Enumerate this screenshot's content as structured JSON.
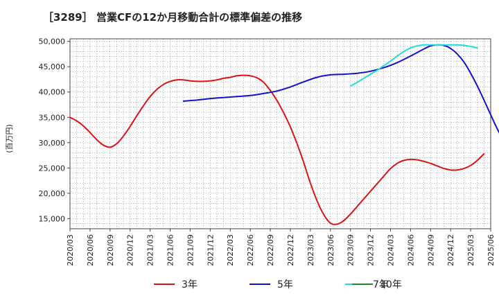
{
  "chart_data": {
    "type": "line",
    "title": "［3289］ 営業CFの12か月移動合計の標準偏差の推移",
    "ylabel": "(百万円)",
    "ylim": [
      13000,
      50500
    ],
    "yticks": [
      15000,
      20000,
      25000,
      30000,
      35000,
      40000,
      45000,
      50000
    ],
    "ytick_labels": [
      "15,000",
      "20,000",
      "25,000",
      "30,000",
      "35,000",
      "40,000",
      "45,000",
      "50,000"
    ],
    "xlim": [
      "2020/03",
      "2025/06"
    ],
    "xtick_labels": [
      "2020/03",
      "2020/06",
      "2020/09",
      "2020/12",
      "2021/03",
      "2021/06",
      "2021/09",
      "2021/12",
      "2022/03",
      "2022/06",
      "2022/09",
      "2022/12",
      "2023/03",
      "2023/06",
      "2023/09",
      "2023/12",
      "2024/03",
      "2024/06",
      "2024/09",
      "2024/12",
      "2025/03",
      "2025/06"
    ],
    "grid": true,
    "legend_position": "bottom",
    "series": [
      {
        "name": "3年",
        "color": "#dd1111",
        "points": [
          [
            "2020/03",
            35000
          ],
          [
            "2020/04",
            34300
          ],
          [
            "2020/05",
            33300
          ],
          [
            "2020/06",
            32000
          ],
          [
            "2020/07",
            30600
          ],
          [
            "2020/08",
            29500
          ],
          [
            "2020/09",
            29100
          ],
          [
            "2020/10",
            29800
          ],
          [
            "2020/11",
            31300
          ],
          [
            "2020/12",
            33200
          ],
          [
            "2021/01",
            35300
          ],
          [
            "2021/02",
            37300
          ],
          [
            "2021/03",
            39100
          ],
          [
            "2021/04",
            40500
          ],
          [
            "2021/05",
            41500
          ],
          [
            "2021/06",
            42100
          ],
          [
            "2021/07",
            42400
          ],
          [
            "2021/08",
            42400
          ],
          [
            "2021/09",
            42200
          ],
          [
            "2021/10",
            42100
          ],
          [
            "2021/11",
            42100
          ],
          [
            "2021/12",
            42200
          ],
          [
            "2021/13",
            42400
          ],
          [
            "2022/02",
            42700
          ],
          [
            "2022/03",
            42900
          ],
          [
            "2022/04",
            43200
          ],
          [
            "2022/05",
            43300
          ],
          [
            "2022/06",
            43200
          ],
          [
            "2022/07",
            42800
          ],
          [
            "2022/08",
            41900
          ],
          [
            "2022/09",
            40300
          ],
          [
            "2022/10",
            38300
          ],
          [
            "2022/11",
            35900
          ],
          [
            "2022/12",
            33100
          ],
          [
            "2023/01",
            29800
          ],
          [
            "2023/02",
            26100
          ],
          [
            "2023/03",
            22000
          ],
          [
            "2023/04",
            18500
          ],
          [
            "2023/05",
            15800
          ],
          [
            "2023/06",
            14100
          ],
          [
            "2023/07",
            13900
          ],
          [
            "2023/08",
            14600
          ],
          [
            "2023/09",
            15900
          ],
          [
            "2023/10",
            17400
          ],
          [
            "2023/11",
            18900
          ],
          [
            "2023/12",
            20400
          ],
          [
            "2024/01",
            21900
          ],
          [
            "2024/02",
            23400
          ],
          [
            "2024/03",
            24900
          ],
          [
            "2024/04",
            25900
          ],
          [
            "2024/05",
            26500
          ],
          [
            "2024/06",
            26700
          ],
          [
            "2024/07",
            26600
          ],
          [
            "2024/08",
            26300
          ],
          [
            "2024/09",
            25900
          ],
          [
            "2024/10",
            25400
          ],
          [
            "2024/11",
            24900
          ],
          [
            "2024/12",
            24600
          ],
          [
            "2025/01",
            24600
          ],
          [
            "2025/02",
            24900
          ],
          [
            "2025/03",
            25500
          ],
          [
            "2025/04",
            26500
          ],
          [
            "2025/05",
            27800
          ]
        ]
      },
      {
        "name": "5年",
        "color": "#1111cc",
        "points": [
          [
            "2021/08",
            38200
          ],
          [
            "2021/10",
            38400
          ],
          [
            "2021/12",
            38700
          ],
          [
            "2022/02",
            38900
          ],
          [
            "2022/04",
            39100
          ],
          [
            "2022/06",
            39300
          ],
          [
            "2022/08",
            39700
          ],
          [
            "2022/10",
            40200
          ],
          [
            "2022/12",
            41000
          ],
          [
            "2023/02",
            42000
          ],
          [
            "2023/04",
            42900
          ],
          [
            "2023/06",
            43400
          ],
          [
            "2023/08",
            43500
          ],
          [
            "2023/10",
            43700
          ],
          [
            "2023/12",
            44100
          ],
          [
            "2024/02",
            44800
          ],
          [
            "2024/04",
            45800
          ],
          [
            "2024/06",
            47100
          ],
          [
            "2024/08",
            48500
          ],
          [
            "2024/09",
            49100
          ],
          [
            "2024/10",
            49300
          ],
          [
            "2024/11",
            49200
          ],
          [
            "2024/12",
            48600
          ],
          [
            "2025/01",
            47500
          ],
          [
            "2025/02",
            45900
          ],
          [
            "2025/03",
            43700
          ],
          [
            "2025/04",
            41200
          ],
          [
            "2025/05",
            38400
          ],
          [
            "2025/06",
            35500
          ],
          [
            "2025/07",
            32700
          ],
          [
            "2025/08",
            30200
          ]
        ]
      },
      {
        "name": "7年",
        "color": "#22dddd",
        "points": [
          [
            "2023/09",
            41200
          ],
          [
            "2023/10",
            41900
          ],
          [
            "2023/11",
            42700
          ],
          [
            "2023/12",
            43500
          ],
          [
            "2024/01",
            44300
          ],
          [
            "2024/02",
            45200
          ],
          [
            "2024/03",
            46100
          ],
          [
            "2024/04",
            47100
          ],
          [
            "2024/05",
            48000
          ],
          [
            "2024/06",
            48700
          ],
          [
            "2024/07",
            49100
          ],
          [
            "2024/08",
            49300
          ],
          [
            "2024/09",
            49300
          ],
          [
            "2024/10",
            49300
          ],
          [
            "2024/11",
            49300
          ],
          [
            "2024/12",
            49300
          ],
          [
            "2025/01",
            49300
          ],
          [
            "2025/02",
            49200
          ],
          [
            "2025/03",
            49000
          ],
          [
            "2025/04",
            48700
          ]
        ]
      },
      {
        "name": "10年",
        "color": "#228822",
        "points": []
      }
    ]
  }
}
